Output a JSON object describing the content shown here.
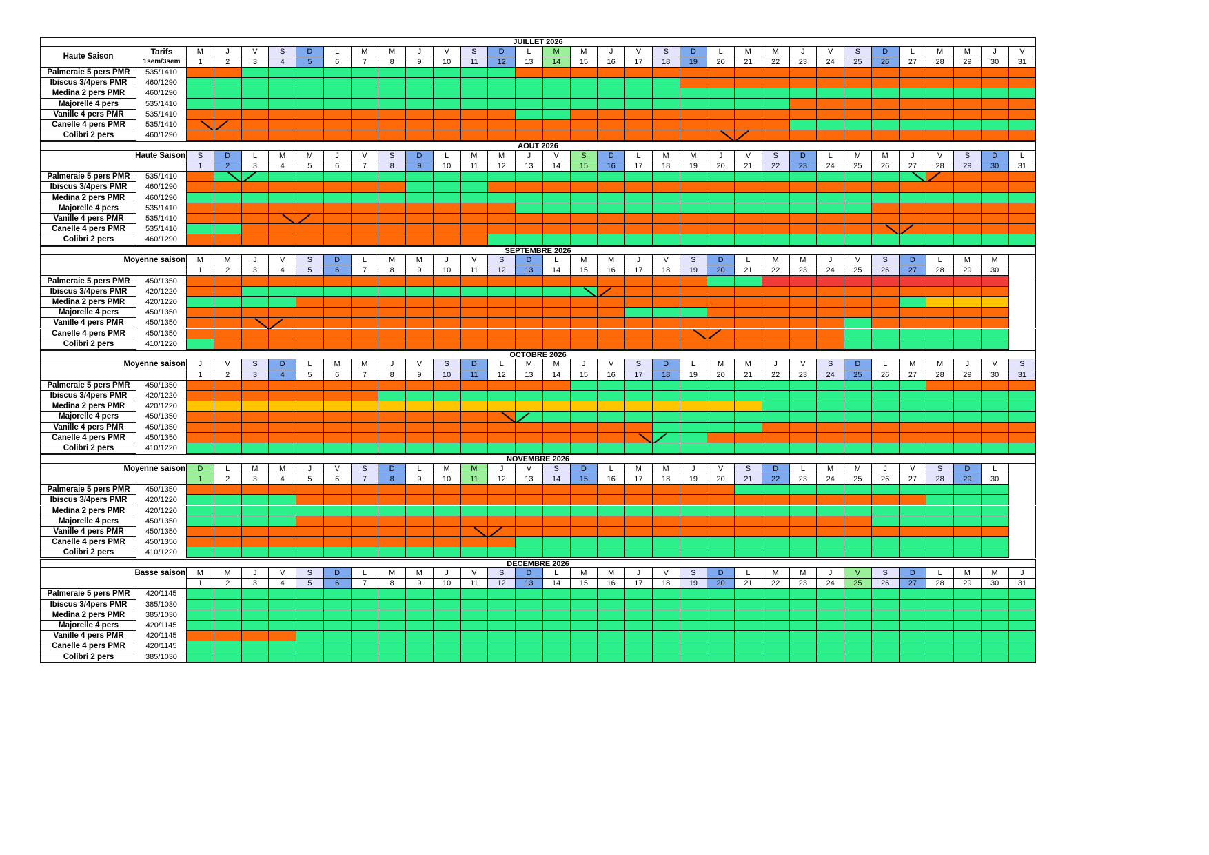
{
  "legend_colors": {
    "available": "#2bf08c",
    "booked": "#fe6a09",
    "option": "#ffc600",
    "closed": "#f23c3a",
    "saturday": "#e4e4ff",
    "sunday": "#7faaf0",
    "holiday": "#9cf09c"
  },
  "months": [
    {
      "title": "JUILLET 2026",
      "season": "Haute Saison",
      "tarifs_label": "Tarifs",
      "tarifs_sub": "1sem/3sem",
      "weekday_letters": [
        "M",
        "J",
        "V",
        "S",
        "D",
        "L",
        "M",
        "M",
        "J",
        "V",
        "S",
        "D",
        "L",
        "M",
        "M",
        "J",
        "V",
        "S",
        "D",
        "L",
        "M",
        "M",
        "J",
        "V",
        "S",
        "D",
        "L",
        "M",
        "M",
        "J",
        "V"
      ],
      "day_numbers": [
        "1",
        "2",
        "3",
        "4",
        "5",
        "6",
        "7",
        "8",
        "9",
        "10",
        "11",
        "12",
        "13",
        "14",
        "15",
        "16",
        "17",
        "18",
        "19",
        "20",
        "21",
        "22",
        "23",
        "24",
        "25",
        "26",
        "27",
        "28",
        "29",
        "30",
        "31"
      ],
      "holidays": [
        14
      ],
      "units": [
        {
          "name": "Palmeraie 5 pers PMR",
          "rate": "535/1410",
          "pattern": [
            [
              "B",
              2
            ],
            [
              "A",
              10
            ],
            [
              "B",
              19
            ]
          ],
          "diagonals": []
        },
        {
          "name": "Ibiscus 3/4pers PMR",
          "rate": "460/1290",
          "pattern": [
            [
              "A",
              18
            ],
            [
              "B",
              13
            ]
          ],
          "diagonals": []
        },
        {
          "name": "Medina 2 pers PMR",
          "rate": "460/1290",
          "pattern": [
            [
              "A",
              31
            ]
          ],
          "diagonals": []
        },
        {
          "name": "Majorelle 4 pers",
          "rate": "535/1410",
          "pattern": [
            [
              "A",
              22
            ],
            [
              "B",
              9
            ]
          ],
          "diagonals": []
        },
        {
          "name": "Vanille 4 pers PMR",
          "rate": "535/1410",
          "pattern": [
            [
              "B",
              12
            ],
            [
              "A",
              2
            ],
            [
              "B",
              17
            ]
          ],
          "diagonals": []
        },
        {
          "name": "Canelle 4 pers PMR",
          "rate": "535/1410",
          "pattern": [
            [
              "B",
              22
            ],
            [
              "A",
              9
            ]
          ],
          "diagonals": [
            1
          ]
        },
        {
          "name": "Colibri 2 pers",
          "rate": "460/1290",
          "pattern": [
            [
              "B",
              31
            ]
          ],
          "diagonals": [
            20
          ]
        }
      ]
    },
    {
      "title": "AOUT 2026",
      "season": "Haute Saison",
      "weekday_letters": [
        "S",
        "D",
        "L",
        "M",
        "M",
        "J",
        "V",
        "S",
        "D",
        "L",
        "M",
        "M",
        "J",
        "V",
        "S",
        "D",
        "L",
        "M",
        "M",
        "J",
        "V",
        "S",
        "D",
        "L",
        "M",
        "M",
        "J",
        "V",
        "S",
        "D",
        "L"
      ],
      "day_numbers": [
        "1",
        "2",
        "3",
        "4",
        "5",
        "6",
        "7",
        "8",
        "9",
        "10",
        "11",
        "12",
        "13",
        "14",
        "15",
        "16",
        "17",
        "18",
        "19",
        "20",
        "21",
        "22",
        "23",
        "24",
        "25",
        "26",
        "27",
        "28",
        "29",
        "30",
        "31"
      ],
      "holidays": [
        15
      ],
      "units": [
        {
          "name": "Palmeraie 5 pers PMR",
          "rate": "535/1410",
          "pattern": [
            [
              "B",
              1
            ],
            [
              "A",
              26
            ],
            [
              "B",
              4
            ]
          ],
          "diagonals": [
            2,
            27
          ]
        },
        {
          "name": "Ibiscus 3/4pers PMR",
          "rate": "460/1290",
          "pattern": [
            [
              "B",
              8
            ],
            [
              "A",
              3
            ],
            [
              "B",
              20
            ]
          ],
          "diagonals": []
        },
        {
          "name": "Medina 2 pers PMR",
          "rate": "460/1290",
          "pattern": [
            [
              "A",
              31
            ]
          ],
          "diagonals": []
        },
        {
          "name": "Majorelle 4 pers",
          "rate": "535/1410",
          "pattern": [
            [
              "B",
              12
            ],
            [
              "A",
              13
            ],
            [
              "B",
              6
            ]
          ],
          "diagonals": []
        },
        {
          "name": "Vanille 4 pers PMR",
          "rate": "535/1410",
          "pattern": [
            [
              "B",
              31
            ]
          ],
          "diagonals": [
            4
          ]
        },
        {
          "name": "Canelle 4 pers PMR",
          "rate": "535/1410",
          "pattern": [
            [
              "A",
              2
            ],
            [
              "B",
              29
            ]
          ],
          "diagonals": [
            26
          ]
        },
        {
          "name": "Colibri 2 pers",
          "rate": "460/1290",
          "pattern": [
            [
              "B",
              11
            ],
            [
              "A",
              20
            ]
          ],
          "diagonals": []
        }
      ]
    },
    {
      "title": "SEPTEMBRE 2026",
      "season": "Moyenne saison",
      "weekday_letters": [
        "M",
        "M",
        "J",
        "V",
        "S",
        "D",
        "L",
        "M",
        "M",
        "J",
        "V",
        "S",
        "D",
        "L",
        "M",
        "M",
        "J",
        "V",
        "S",
        "D",
        "L",
        "M",
        "M",
        "J",
        "V",
        "S",
        "D",
        "L",
        "M",
        "M"
      ],
      "day_numbers": [
        "1",
        "2",
        "3",
        "4",
        "5",
        "6",
        "7",
        "8",
        "9",
        "10",
        "11",
        "12",
        "13",
        "14",
        "15",
        "16",
        "17",
        "18",
        "19",
        "20",
        "21",
        "22",
        "23",
        "24",
        "25",
        "26",
        "27",
        "28",
        "29",
        "30"
      ],
      "holidays": [],
      "units": [
        {
          "name": "Palmeraie 5 pers PMR",
          "rate": "450/1350",
          "pattern": [
            [
              "B",
              19
            ],
            [
              "A",
              2
            ],
            [
              "R",
              9
            ]
          ],
          "diagonals": []
        },
        {
          "name": "Ibiscus 3/4pers PMR",
          "rate": "420/1220",
          "pattern": [
            [
              "B",
              2
            ],
            [
              "A",
              13
            ],
            [
              "B",
              15
            ]
          ],
          "diagonals": [
            15
          ]
        },
        {
          "name": "Medina 2 pers PMR",
          "rate": "420/1220",
          "pattern": [
            [
              "A",
              4
            ],
            [
              "B",
              22
            ],
            [
              "A",
              1
            ],
            [
              "Y",
              3
            ]
          ],
          "diagonals": []
        },
        {
          "name": "Majorelle 4 pers",
          "rate": "450/1350",
          "pattern": [
            [
              "B",
              16
            ],
            [
              "A",
              3
            ],
            [
              "B",
              11
            ]
          ],
          "diagonals": []
        },
        {
          "name": "Vanille 4 pers PMR",
          "rate": "450/1350",
          "pattern": [
            [
              "B",
              24
            ],
            [
              "A",
              1
            ],
            [
              "B",
              5
            ]
          ],
          "diagonals": [
            3
          ]
        },
        {
          "name": "Canelle 4 pers PMR",
          "rate": "450/1350",
          "pattern": [
            [
              "B",
              24
            ],
            [
              "A",
              6
            ]
          ],
          "diagonals": [
            19
          ]
        },
        {
          "name": "Colibri 2 pers",
          "rate": "410/1220",
          "pattern": [
            [
              "A",
              1
            ],
            [
              "B",
              23
            ],
            [
              "A",
              6
            ]
          ],
          "diagonals": []
        }
      ]
    },
    {
      "title": "OCTOBRE 2026",
      "season": "Moyenne saison",
      "weekday_letters": [
        "J",
        "V",
        "S",
        "D",
        "L",
        "M",
        "M",
        "J",
        "V",
        "S",
        "D",
        "L",
        "M",
        "M",
        "J",
        "V",
        "S",
        "D",
        "L",
        "M",
        "M",
        "J",
        "V",
        "S",
        "D",
        "L",
        "M",
        "M",
        "J",
        "V",
        "S"
      ],
      "day_numbers": [
        "1",
        "2",
        "3",
        "4",
        "5",
        "6",
        "7",
        "8",
        "9",
        "10",
        "11",
        "12",
        "13",
        "14",
        "15",
        "16",
        "17",
        "18",
        "19",
        "20",
        "21",
        "22",
        "23",
        "24",
        "25",
        "26",
        "27",
        "28",
        "29",
        "30",
        "31"
      ],
      "holidays": [],
      "units": [
        {
          "name": "Palmeraie 5 pers PMR",
          "rate": "450/1350",
          "pattern": [
            [
              "B",
              14
            ],
            [
              "A",
              13
            ],
            [
              "B",
              4
            ]
          ],
          "diagonals": []
        },
        {
          "name": "Ibiscus 3/4pers PMR",
          "rate": "420/1220",
          "pattern": [
            [
              "B",
              7
            ],
            [
              "A",
              24
            ]
          ],
          "diagonals": []
        },
        {
          "name": "Medina 2 pers PMR",
          "rate": "420/1220",
          "pattern": [
            [
              "Y",
              21
            ],
            [
              "A",
              10
            ]
          ],
          "diagonals": []
        },
        {
          "name": "Majorelle 4 pers",
          "rate": "450/1350",
          "pattern": [
            [
              "B",
              12
            ],
            [
              "A",
              19
            ]
          ],
          "diagonals": [
            12
          ]
        },
        {
          "name": "Vanille 4 pers PMR",
          "rate": "450/1350",
          "pattern": [
            [
              "B",
              17
            ],
            [
              "A",
              4
            ],
            [
              "B",
              10
            ]
          ],
          "diagonals": []
        },
        {
          "name": "Canelle 4 pers PMR",
          "rate": "450/1350",
          "pattern": [
            [
              "B",
              17
            ],
            [
              "A",
              2
            ],
            [
              "B",
              12
            ]
          ],
          "diagonals": [
            17
          ]
        },
        {
          "name": "Colibri 2 pers",
          "rate": "410/1220",
          "pattern": [
            [
              "A",
              31
            ]
          ],
          "diagonals": []
        }
      ]
    },
    {
      "title": "NOVEMBRE 2026",
      "season": "Moyenne saison",
      "weekday_letters": [
        "D",
        "L",
        "M",
        "M",
        "J",
        "V",
        "S",
        "D",
        "L",
        "M",
        "M",
        "J",
        "V",
        "S",
        "D",
        "L",
        "M",
        "M",
        "J",
        "V",
        "S",
        "D",
        "L",
        "M",
        "M",
        "J",
        "V",
        "S",
        "D",
        "L"
      ],
      "day_numbers": [
        "1",
        "2",
        "3",
        "4",
        "5",
        "6",
        "7",
        "8",
        "9",
        "10",
        "11",
        "12",
        "13",
        "14",
        "15",
        "16",
        "17",
        "18",
        "19",
        "20",
        "21",
        "22",
        "23",
        "24",
        "25",
        "26",
        "27",
        "28",
        "29",
        "30"
      ],
      "holidays": [
        1,
        11
      ],
      "units": [
        {
          "name": "Palmeraie 5 pers PMR",
          "rate": "450/1350",
          "pattern": [
            [
              "B",
              20
            ],
            [
              "A",
              10
            ]
          ],
          "diagonals": []
        },
        {
          "name": "Ibiscus 3/4pers PMR",
          "rate": "420/1220",
          "pattern": [
            [
              "A",
              4
            ],
            [
              "B",
              23
            ],
            [
              "A",
              3
            ]
          ],
          "diagonals": []
        },
        {
          "name": "Medina 2 pers PMR",
          "rate": "420/1220",
          "pattern": [
            [
              "A",
              30
            ]
          ],
          "diagonals": []
        },
        {
          "name": "Majorelle 4 pers",
          "rate": "450/1350",
          "pattern": [
            [
              "A",
              4
            ],
            [
              "B",
              21
            ],
            [
              "A",
              5
            ]
          ],
          "diagonals": []
        },
        {
          "name": "Vanille 4 pers PMR",
          "rate": "450/1350",
          "pattern": [
            [
              "B",
              30
            ]
          ],
          "diagonals": [
            11
          ]
        },
        {
          "name": "Canelle 4 pers PMR",
          "rate": "450/1350",
          "pattern": [
            [
              "B",
              12
            ],
            [
              "A",
              18
            ]
          ],
          "diagonals": []
        },
        {
          "name": "Colibri 2 pers",
          "rate": "410/1220",
          "pattern": [
            [
              "A",
              30
            ]
          ],
          "diagonals": []
        }
      ]
    },
    {
      "title": "DECEMBRE 2026",
      "season": "Basse saison",
      "weekday_letters": [
        "M",
        "M",
        "J",
        "V",
        "S",
        "D",
        "L",
        "M",
        "M",
        "J",
        "V",
        "S",
        "D",
        "L",
        "M",
        "M",
        "J",
        "V",
        "S",
        "D",
        "L",
        "M",
        "M",
        "J",
        "V",
        "S",
        "D",
        "L",
        "M",
        "M",
        "J"
      ],
      "day_numbers": [
        "1",
        "2",
        "3",
        "4",
        "5",
        "6",
        "7",
        "8",
        "9",
        "10",
        "11",
        "12",
        "13",
        "14",
        "15",
        "16",
        "17",
        "18",
        "19",
        "20",
        "21",
        "22",
        "23",
        "24",
        "25",
        "26",
        "27",
        "28",
        "29",
        "30",
        "31"
      ],
      "holidays": [
        25
      ],
      "units": [
        {
          "name": "Palmeraie 5 pers PMR",
          "rate": "420/1145",
          "pattern": [
            [
              "A",
              31
            ]
          ],
          "diagonals": []
        },
        {
          "name": "Ibiscus 3/4pers PMR",
          "rate": "385/1030",
          "pattern": [
            [
              "A",
              31
            ]
          ],
          "diagonals": []
        },
        {
          "name": "Medina 2 pers PMR",
          "rate": "385/1030",
          "pattern": [
            [
              "A",
              31
            ]
          ],
          "diagonals": []
        },
        {
          "name": "Majorelle 4 pers",
          "rate": "420/1145",
          "pattern": [
            [
              "A",
              31
            ]
          ],
          "diagonals": []
        },
        {
          "name": "Vanille 4 pers PMR",
          "rate": "420/1145",
          "pattern": [
            [
              "B",
              4
            ],
            [
              "A",
              27
            ]
          ],
          "diagonals": []
        },
        {
          "name": "Canelle 4 pers PMR",
          "rate": "420/1145",
          "pattern": [
            [
              "A",
              31
            ]
          ],
          "diagonals": []
        },
        {
          "name": "Colibri 2 pers",
          "rate": "385/1030",
          "pattern": [
            [
              "A",
              31
            ]
          ],
          "diagonals": []
        }
      ]
    }
  ]
}
